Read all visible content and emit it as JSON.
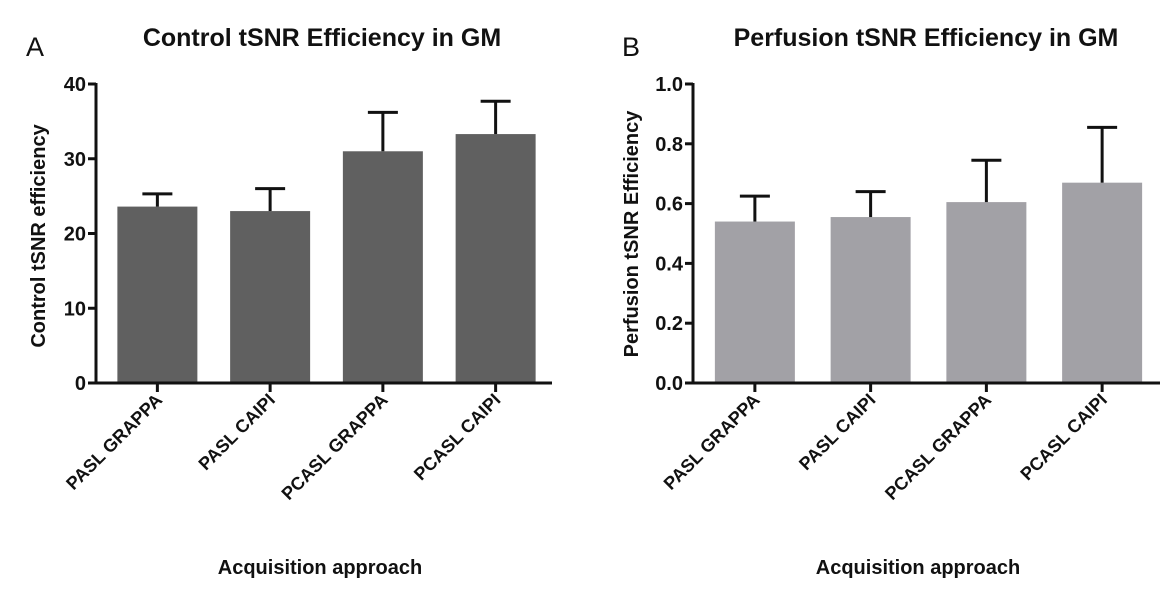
{
  "chart_data": [
    {
      "type": "bar",
      "panel_label": "A",
      "title": "Control tSNR Efficiency in GM",
      "xlabel": "Acquisition approach",
      "ylabel": "Control tSNR efficiency",
      "categories": [
        "PASL GRAPPA",
        "PASL CAIPI",
        "PCASL GRAPPA",
        "PCASL CAIPI"
      ],
      "values": [
        23.6,
        23.0,
        31.0,
        33.3
      ],
      "error_upper": [
        1.7,
        3.0,
        5.2,
        4.4
      ],
      "ylim": [
        0,
        40
      ],
      "yticks": [
        0,
        10,
        20,
        30,
        40
      ],
      "ytick_labels": [
        "0",
        "10",
        "20",
        "30",
        "40"
      ],
      "bar_color": "#606060",
      "grid": false,
      "legend": "none"
    },
    {
      "type": "bar",
      "panel_label": "B",
      "title": "Perfusion tSNR Efficiency in GM",
      "xlabel": "Acquisition approach",
      "ylabel": "Perfusion tSNR Efficiency",
      "categories": [
        "PASL GRAPPA",
        "PASL CAIPI",
        "PCASL GRAPPA",
        "PCASL CAIPI"
      ],
      "values": [
        0.54,
        0.555,
        0.605,
        0.67
      ],
      "error_upper": [
        0.085,
        0.085,
        0.14,
        0.185
      ],
      "ylim": [
        0,
        1.0
      ],
      "yticks": [
        0,
        0.2,
        0.4,
        0.6,
        0.8,
        1.0
      ],
      "ytick_labels": [
        "0.0",
        "0.2",
        "0.4",
        "0.6",
        "0.8",
        "1.0"
      ],
      "bar_color": "#a2a1a6",
      "grid": false,
      "legend": "none"
    }
  ]
}
